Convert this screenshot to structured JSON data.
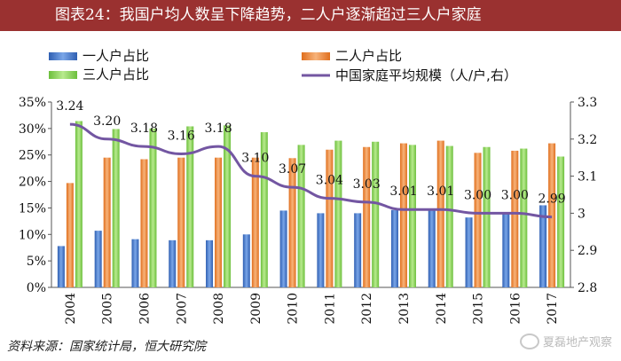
{
  "title": "图表24：我国户均人数呈下降趋势，二人户逐渐超过三人户家庭",
  "source": "资料来源：国家统计局，恒大研究院",
  "watermark": "夏磊地产观察",
  "colors": {
    "one": "#3f73c8",
    "two": "#f08a3c",
    "three": "#86d15a",
    "line": "#7356a2"
  },
  "chart_data": {
    "type": "bar",
    "categories": [
      "2004",
      "2005",
      "2006",
      "2007",
      "2008",
      "2009",
      "2010",
      "2011",
      "2012",
      "2013",
      "2014",
      "2015",
      "2016",
      "2017"
    ],
    "series": [
      {
        "name": "一人户占比",
        "axis": "left",
        "values": [
          7.8,
          10.7,
          9.1,
          8.9,
          8.9,
          10.0,
          14.5,
          14.0,
          14.0,
          14.6,
          14.9,
          13.2,
          14.1,
          15.5
        ]
      },
      {
        "name": "二人户占比",
        "axis": "left",
        "values": [
          19.7,
          24.5,
          24.2,
          24.5,
          24.5,
          24.5,
          24.4,
          26.0,
          26.5,
          27.2,
          27.7,
          25.4,
          25.8,
          27.2
        ]
      },
      {
        "name": "三人户占比",
        "axis": "left",
        "values": [
          31.4,
          29.9,
          30.0,
          30.4,
          30.6,
          29.3,
          26.9,
          27.7,
          27.5,
          26.9,
          26.7,
          26.5,
          26.2,
          24.7
        ]
      },
      {
        "name": "中国家庭平均规模（人/户,右）",
        "type": "line",
        "axis": "right",
        "values": [
          3.24,
          3.2,
          3.18,
          3.16,
          3.18,
          3.1,
          3.07,
          3.04,
          3.03,
          3.01,
          3.01,
          3.0,
          3.0,
          2.99
        ]
      }
    ],
    "labels": [
      "3.24",
      "3.20",
      "3.18",
      "3.16",
      "3.18",
      "3.10",
      "3.07",
      "3.04",
      "3.03",
      "3.01",
      "3.01",
      "3.00",
      "3.00",
      "2.99"
    ],
    "y_left": {
      "min": 0,
      "max": 35,
      "ticks": [
        "0%",
        "5%",
        "10%",
        "15%",
        "20%",
        "25%",
        "30%",
        "35%"
      ]
    },
    "y_right": {
      "min": 2.8,
      "max": 3.3,
      "ticks": [
        "2.8",
        "2.9",
        "3",
        "3.1",
        "3.2",
        "3.3"
      ]
    },
    "legend": [
      "一人户占比",
      "二人户占比",
      "三人户占比",
      "中国家庭平均规模（人/户,右）"
    ],
    "legend_position": "top"
  }
}
